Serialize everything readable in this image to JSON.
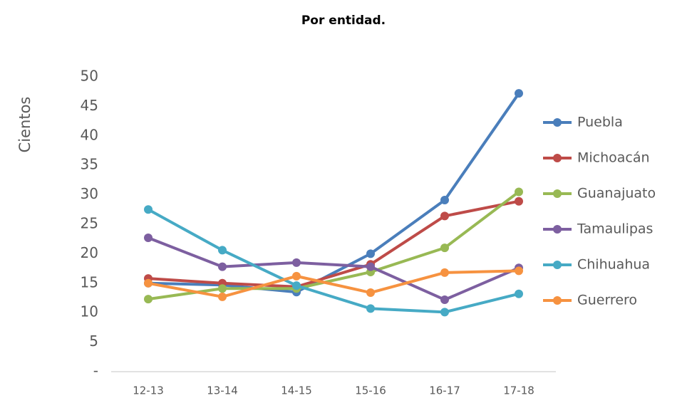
{
  "chart_data": {
    "type": "line",
    "title": "Por entidad.",
    "y_label": "Cientos",
    "categories": [
      "12-13",
      "13-14",
      "14-15",
      "15-16",
      "16-17",
      "17-18"
    ],
    "series": [
      {
        "name": "Puebla",
        "color": "#4a7ebb",
        "values": [
          15.0,
          14.7,
          13.5,
          20.0,
          29.1,
          47.2
        ]
      },
      {
        "name": "Michoacán",
        "color": "#be4b48",
        "values": [
          15.8,
          15.0,
          14.4,
          18.2,
          26.4,
          28.9
        ]
      },
      {
        "name": "Guanajuato",
        "color": "#98b954",
        "values": [
          12.3,
          14.1,
          14.1,
          16.9,
          21.0,
          30.5
        ]
      },
      {
        "name": "Tamaulipas",
        "color": "#7d5fa0",
        "values": [
          22.7,
          17.8,
          18.5,
          17.8,
          12.2,
          17.6
        ]
      },
      {
        "name": "Chihuahua",
        "color": "#46aac5",
        "values": [
          27.5,
          20.6,
          14.6,
          10.7,
          10.1,
          13.2
        ]
      },
      {
        "name": "Guerrero",
        "color": "#f69240",
        "values": [
          15.0,
          12.7,
          16.2,
          13.4,
          16.8,
          17.1
        ]
      }
    ],
    "ylim": [
      0,
      50
    ],
    "yticks": [
      {
        "value": 0,
        "label": "-"
      },
      5,
      10,
      15,
      20,
      25,
      30,
      35,
      40,
      45,
      50
    ],
    "grid": false,
    "legend": "right"
  }
}
